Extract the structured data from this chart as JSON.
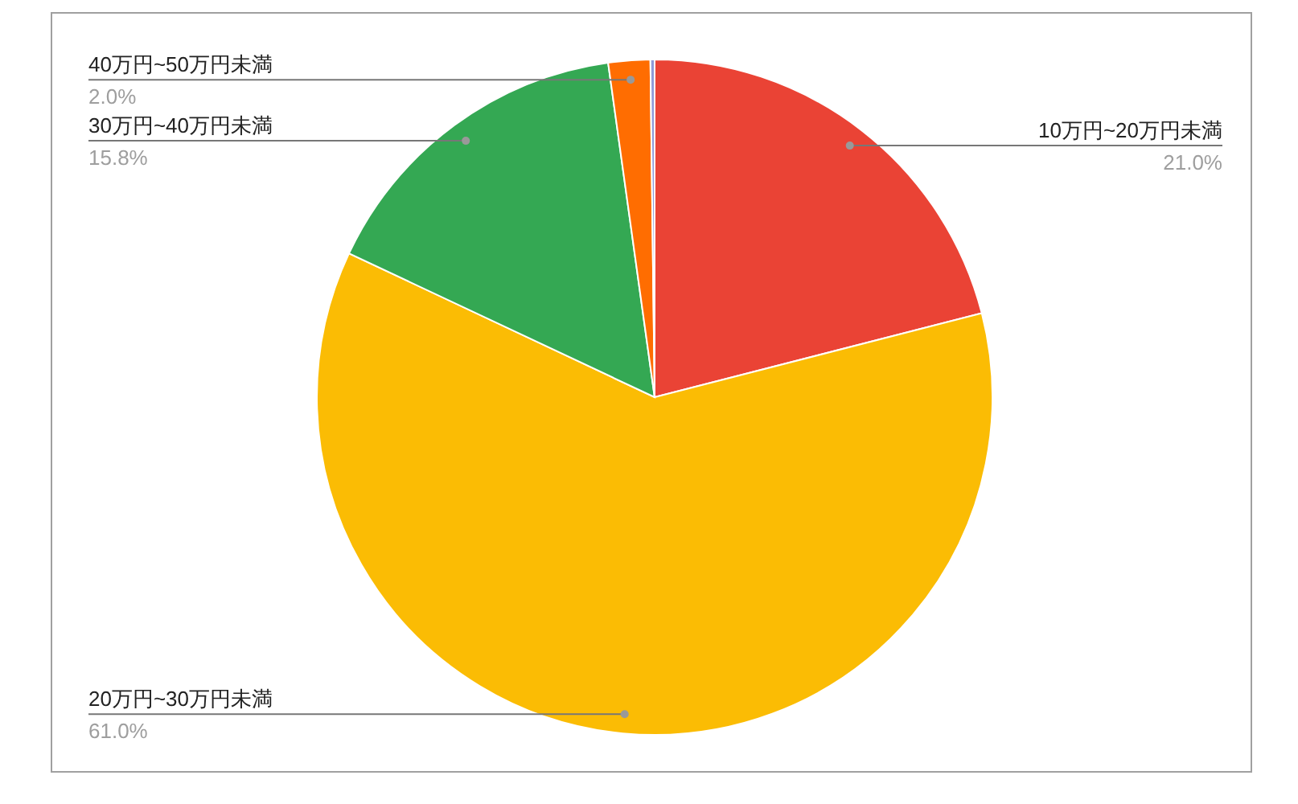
{
  "chart_data": {
    "type": "pie",
    "categories": [
      "10万円~20万円未満",
      "20万円~30万円未満",
      "30万円~40万円未満",
      "40万円~50万円未満",
      null
    ],
    "values": [
      21.0,
      61.0,
      15.8,
      2.0,
      0.2
    ],
    "colors": [
      "#ea4335",
      "#fbbc04",
      "#34a853",
      "#ff6d01",
      "#8e9ad8"
    ],
    "value_labels": [
      "21.0%",
      "61.0%",
      "15.8%",
      "2.0%",
      null
    ]
  }
}
